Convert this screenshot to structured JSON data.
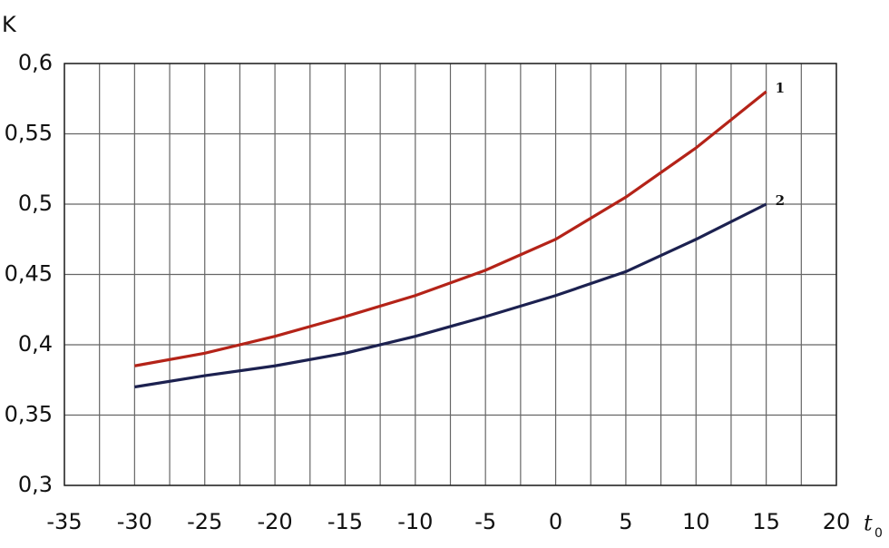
{
  "chart_data": {
    "type": "line",
    "ylabel": "K",
    "xlabel": "t",
    "xlabel_sub": "0",
    "x": [
      -30,
      -25,
      -20,
      -15,
      -10,
      -5,
      0,
      5,
      10,
      15
    ],
    "series": [
      {
        "name": "1",
        "color": "#b42318",
        "values": [
          0.385,
          0.394,
          0.406,
          0.42,
          0.435,
          0.453,
          0.475,
          0.505,
          0.54,
          0.58
        ]
      },
      {
        "name": "2",
        "color": "#1c2150",
        "values": [
          0.37,
          0.378,
          0.385,
          0.394,
          0.406,
          0.42,
          0.435,
          0.452,
          0.475,
          0.5
        ]
      }
    ],
    "xlim": [
      -35,
      20
    ],
    "xticks": [
      -35,
      -30,
      -25,
      -20,
      -15,
      -10,
      -5,
      0,
      5,
      10,
      15,
      20
    ],
    "xminor": [
      -32.5,
      -27.5,
      -22.5,
      -17.5,
      -12.5,
      -7.5,
      -2.5,
      2.5,
      7.5,
      12.5,
      17.5
    ],
    "ylim": [
      0.3,
      0.6
    ],
    "yticks": [
      {
        "value": 0.3,
        "label": "0,3"
      },
      {
        "value": 0.35,
        "label": "0,35"
      },
      {
        "value": 0.4,
        "label": "0,4"
      },
      {
        "value": 0.45,
        "label": "0,45"
      },
      {
        "value": 0.5,
        "label": "0,5"
      },
      {
        "value": 0.55,
        "label": "0,55"
      },
      {
        "value": 0.6,
        "label": "0,6"
      }
    ],
    "grid": true
  }
}
